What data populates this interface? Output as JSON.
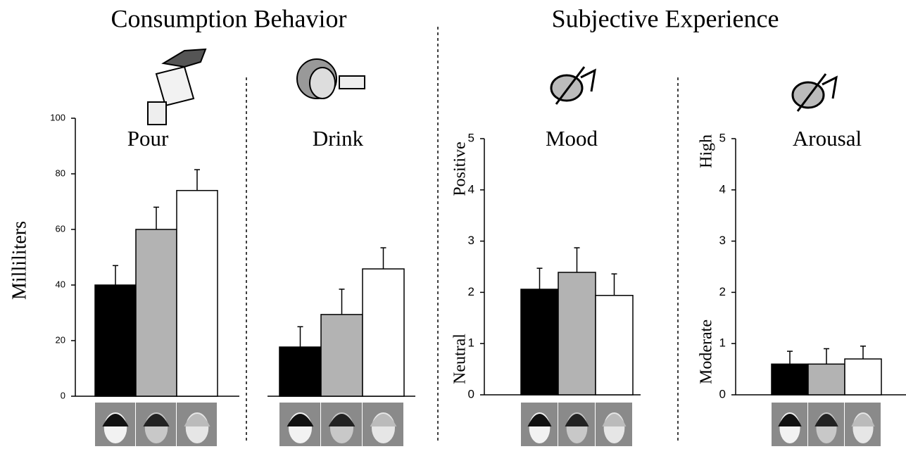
{
  "headings": [
    "Consumption Behavior",
    "Subjective Experience"
  ],
  "chart_data": [
    {
      "type": "bar",
      "title": "Pour",
      "ylabel": "Milliliters",
      "values": [
        40,
        60,
        74
      ],
      "errors": [
        7,
        8,
        7.5
      ],
      "colors": [
        "#000000",
        "#b3b3b3",
        "#ffffff"
      ],
      "ylim": [
        0,
        100
      ],
      "yticks": [
        0,
        20,
        40,
        60,
        80,
        100
      ]
    },
    {
      "type": "bar",
      "title": "Drink",
      "values": [
        17.7,
        29.4,
        45.8
      ],
      "errors": [
        7.3,
        9.1,
        7.6
      ],
      "colors": [
        "#000000",
        "#b3b3b3",
        "#ffffff"
      ],
      "ylim": [
        0,
        100
      ]
    },
    {
      "type": "bar",
      "title": "Mood",
      "ylabel_top": "Positive",
      "ylabel_bottom": "Neutral",
      "values": [
        2.06,
        2.39,
        1.94
      ],
      "errors": [
        0.41,
        0.48,
        0.42
      ],
      "colors": [
        "#000000",
        "#b3b3b3",
        "#ffffff"
      ],
      "ylim": [
        0,
        5
      ],
      "yticks": [
        0,
        1,
        2,
        3,
        4,
        5
      ]
    },
    {
      "type": "bar",
      "title": "Arousal",
      "ylabel_top": "High",
      "ylabel_bottom": "Moderate",
      "values": [
        0.6,
        0.6,
        0.7
      ],
      "errors": [
        0.25,
        0.3,
        0.25
      ],
      "colors": [
        "#000000",
        "#b3b3b3",
        "#ffffff"
      ],
      "ylim": [
        0,
        5
      ],
      "yticks": [
        0,
        1,
        2,
        3,
        4,
        5
      ]
    }
  ]
}
